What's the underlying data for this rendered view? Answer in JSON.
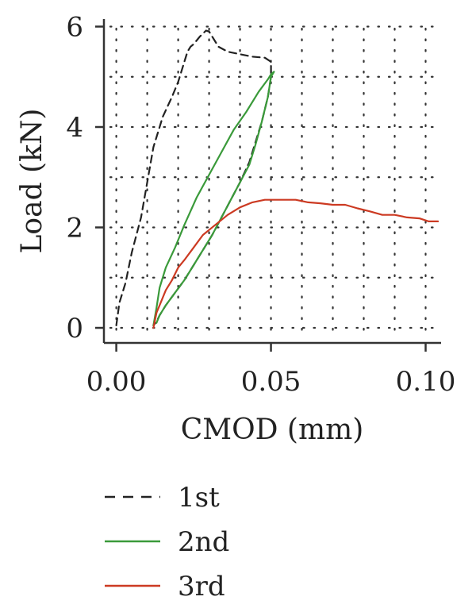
{
  "chart_data": {
    "type": "line",
    "title": "",
    "xlabel": "CMOD (mm)",
    "ylabel": "Load (kN)",
    "xlim": [
      -0.004,
      0.105
    ],
    "ylim": [
      -0.3,
      6.15
    ],
    "x_ticks": [
      0.0,
      0.05,
      0.1
    ],
    "x_tick_labels": [
      "0.00",
      "0.05",
      "0.10"
    ],
    "y_ticks": [
      0,
      2,
      4,
      6
    ],
    "y_tick_labels": [
      "0",
      "2",
      "4",
      "6"
    ],
    "x_grid": [
      0.0,
      0.01,
      0.02,
      0.03,
      0.04,
      0.05,
      0.06,
      0.07,
      0.08,
      0.09,
      0.1
    ],
    "y_grid": [
      0,
      1,
      2,
      3,
      4,
      5,
      6
    ],
    "grid": true,
    "legend": "below",
    "series": [
      {
        "name": "1st",
        "color": "#222222",
        "style": "dashed",
        "x": [
          0.0,
          0.001,
          0.003,
          0.005,
          0.008,
          0.01,
          0.012,
          0.015,
          0.018,
          0.02,
          0.022,
          0.023,
          0.024,
          0.025,
          0.027,
          0.029,
          0.03,
          0.033,
          0.036,
          0.04,
          0.044,
          0.048,
          0.05,
          0.05,
          0.049,
          0.047,
          0.045,
          0.043,
          0.04,
          0.037,
          0.034,
          0.031,
          0.028,
          0.025,
          0.022,
          0.019,
          0.016,
          0.014,
          0.013,
          0.012
        ],
        "y": [
          0.05,
          0.5,
          0.9,
          1.5,
          2.2,
          2.9,
          3.6,
          4.2,
          4.6,
          4.9,
          5.3,
          5.5,
          5.6,
          5.65,
          5.8,
          5.92,
          5.9,
          5.6,
          5.5,
          5.45,
          5.4,
          5.38,
          5.3,
          5.0,
          4.6,
          4.1,
          3.7,
          3.3,
          2.9,
          2.55,
          2.2,
          1.85,
          1.55,
          1.25,
          0.95,
          0.7,
          0.45,
          0.25,
          0.12,
          0.05
        ]
      },
      {
        "name": "2nd",
        "color": "#3a9a3a",
        "style": "solid",
        "x": [
          0.012,
          0.013,
          0.014,
          0.016,
          0.019,
          0.022,
          0.026,
          0.03,
          0.034,
          0.038,
          0.042,
          0.046,
          0.049,
          0.05,
          0.051,
          0.05,
          0.049,
          0.047,
          0.045,
          0.043,
          0.04,
          0.037,
          0.034,
          0.031,
          0.028,
          0.025,
          0.022,
          0.019,
          0.016,
          0.014,
          0.013
        ],
        "y": [
          0.05,
          0.4,
          0.8,
          1.2,
          1.6,
          2.05,
          2.6,
          3.05,
          3.5,
          3.95,
          4.3,
          4.7,
          4.95,
          5.05,
          5.1,
          5.0,
          4.6,
          4.1,
          3.65,
          3.25,
          2.9,
          2.55,
          2.2,
          1.85,
          1.55,
          1.25,
          0.95,
          0.7,
          0.45,
          0.25,
          0.1
        ]
      },
      {
        "name": "3rd",
        "color": "#cc3a22",
        "style": "solid",
        "x": [
          0.012,
          0.013,
          0.014,
          0.015,
          0.016,
          0.018,
          0.02,
          0.022,
          0.025,
          0.028,
          0.032,
          0.036,
          0.04,
          0.044,
          0.048,
          0.05,
          0.052,
          0.055,
          0.058,
          0.062,
          0.066,
          0.07,
          0.074,
          0.078,
          0.082,
          0.086,
          0.09,
          0.094,
          0.098,
          0.101,
          0.104
        ],
        "y": [
          0.0,
          0.3,
          0.45,
          0.6,
          0.75,
          0.95,
          1.2,
          1.35,
          1.6,
          1.85,
          2.05,
          2.25,
          2.4,
          2.5,
          2.55,
          2.55,
          2.55,
          2.55,
          2.55,
          2.5,
          2.48,
          2.45,
          2.45,
          2.38,
          2.32,
          2.25,
          2.25,
          2.2,
          2.18,
          2.12,
          2.12
        ]
      }
    ]
  }
}
